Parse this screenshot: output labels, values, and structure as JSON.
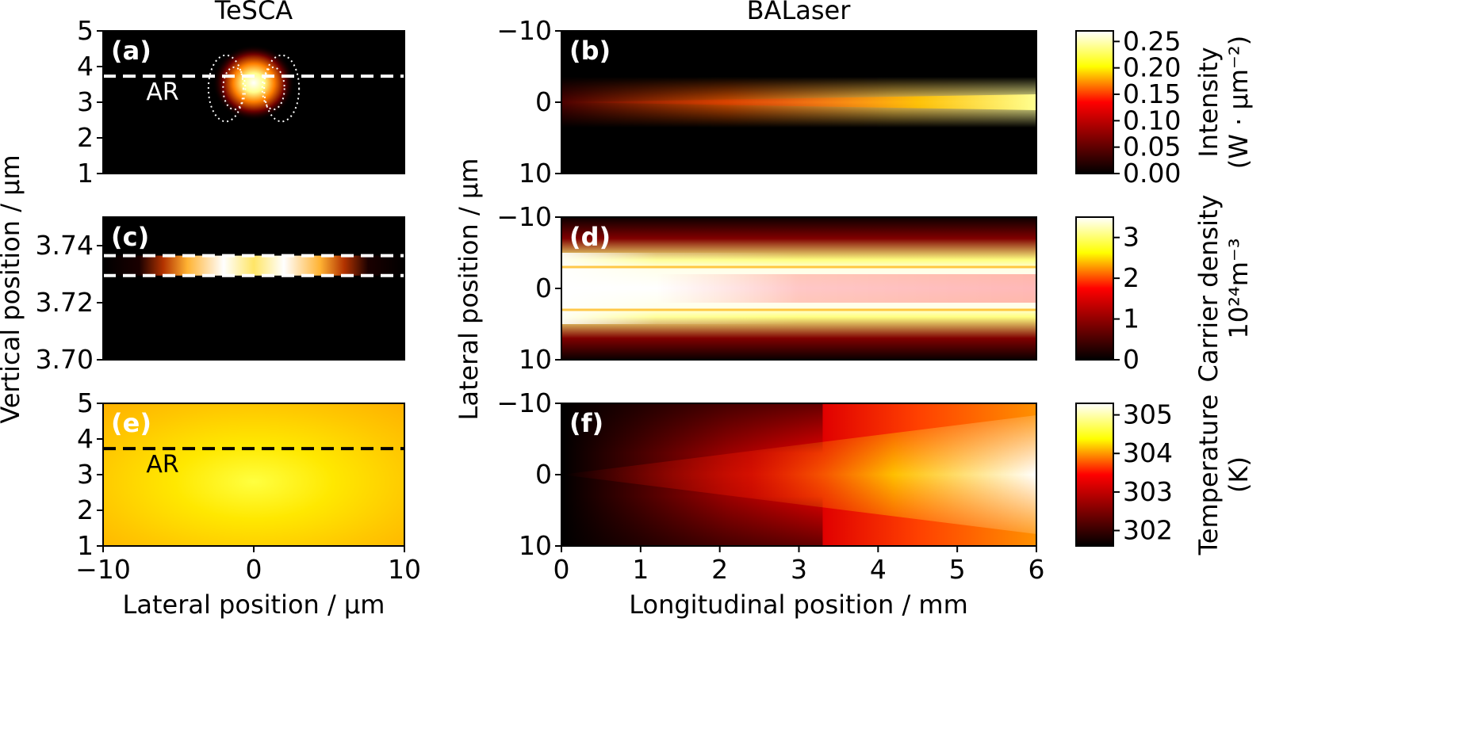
{
  "figure": {
    "column_titles": {
      "left": "TeSCA",
      "right": "BALaser"
    },
    "axis_titles": {
      "left_y": "Vertical position / µm",
      "left_x": "Lateral position / µm",
      "right_y": "Lateral position / µm",
      "right_x": "Longitudinal position / mm"
    },
    "colorbars": [
      {
        "row": 0,
        "label_lines": [
          "Intensity",
          "(W · µm⁻²)"
        ],
        "ticks": [
          "0.00",
          "0.05",
          "0.10",
          "0.15",
          "0.20",
          "0.25"
        ],
        "range": [
          0,
          0.27
        ]
      },
      {
        "row": 1,
        "label_lines": [
          "Carrier density",
          "10²⁴m⁻³"
        ],
        "ticks": [
          "0",
          "1",
          "2",
          "3"
        ],
        "range": [
          0,
          3.5
        ]
      },
      {
        "row": 2,
        "label_lines": [
          "Temperature",
          "(K)"
        ],
        "ticks": [
          "302",
          "303",
          "304",
          "305"
        ],
        "range": [
          301.6,
          305.3
        ]
      }
    ],
    "colormap": "afmhot",
    "colors": {
      "dark": "#000000",
      "mid": "#ff0000",
      "bright": "#ffff00",
      "max": "#ffffff",
      "dashed_white": "#ffffff",
      "dashed_black": "#000000"
    }
  },
  "chart_data": [
    {
      "id": "a",
      "tag": "(a)",
      "type": "heatmap",
      "quantity": "Intensity",
      "xlim": [
        -10,
        10
      ],
      "ylim": [
        1,
        5
      ],
      "y_direction": "up",
      "yticks": [
        "1",
        "2",
        "3",
        "4",
        "5"
      ],
      "dashed_line": {
        "y": 3.73,
        "color": "white",
        "label": "AR"
      },
      "peak": {
        "x": 0,
        "y": 3.5,
        "value": 0.27
      }
    },
    {
      "id": "b",
      "tag": "(b)",
      "type": "heatmap",
      "quantity": "Intensity",
      "xlim": [
        0,
        6
      ],
      "ylim": [
        -10,
        10
      ],
      "y_direction": "down",
      "yticks": [
        "−10",
        "0",
        "10"
      ],
      "profile": {
        "center_y": 0,
        "value_at_x": [
          [
            0,
            0.04
          ],
          [
            2,
            0.1
          ],
          [
            4,
            0.2
          ],
          [
            6,
            0.27
          ]
        ]
      }
    },
    {
      "id": "c",
      "tag": "(c)",
      "type": "heatmap",
      "quantity": "Carrier density",
      "xlim": [
        -10,
        10
      ],
      "ylim": [
        3.7,
        3.75
      ],
      "y_direction": "up",
      "yticks": [
        "3.70",
        "3.72",
        "3.74"
      ],
      "dashed_lines": [
        {
          "y": 3.7365,
          "color": "white"
        },
        {
          "y": 3.7295,
          "color": "white"
        }
      ],
      "peaks_x": [
        -2.2,
        2.2
      ],
      "peak_value": 3.5
    },
    {
      "id": "d",
      "tag": "(d)",
      "type": "heatmap",
      "quantity": "Carrier density",
      "xlim": [
        0,
        6
      ],
      "ylim": [
        -10,
        10
      ],
      "y_direction": "down",
      "yticks": [
        "−10",
        "0",
        "10"
      ],
      "profile": {
        "center_y": 0,
        "max_value": 3.5
      }
    },
    {
      "id": "e",
      "tag": "(e)",
      "type": "heatmap",
      "quantity": "Temperature",
      "xlim": [
        -10,
        10
      ],
      "ylim": [
        1,
        5
      ],
      "y_direction": "up",
      "yticks": [
        "1",
        "2",
        "3",
        "4",
        "5"
      ],
      "xticks": [
        "−10",
        "0",
        "10"
      ],
      "dashed_line": {
        "y": 3.73,
        "color": "black",
        "label": "AR"
      },
      "peak": {
        "x": 0,
        "y": 2.5,
        "value": 304.3
      }
    },
    {
      "id": "f",
      "tag": "(f)",
      "type": "heatmap",
      "quantity": "Temperature",
      "xlim": [
        0,
        6
      ],
      "ylim": [
        -10,
        10
      ],
      "y_direction": "down",
      "yticks": [
        "−10",
        "0",
        "10"
      ],
      "xticks": [
        "0",
        "1",
        "2",
        "3",
        "4",
        "5",
        "6"
      ],
      "profile": {
        "center_y": 0,
        "value_at_x": [
          [
            0,
            301.8
          ],
          [
            3,
            303.3
          ],
          [
            6,
            305.3
          ]
        ]
      }
    }
  ]
}
